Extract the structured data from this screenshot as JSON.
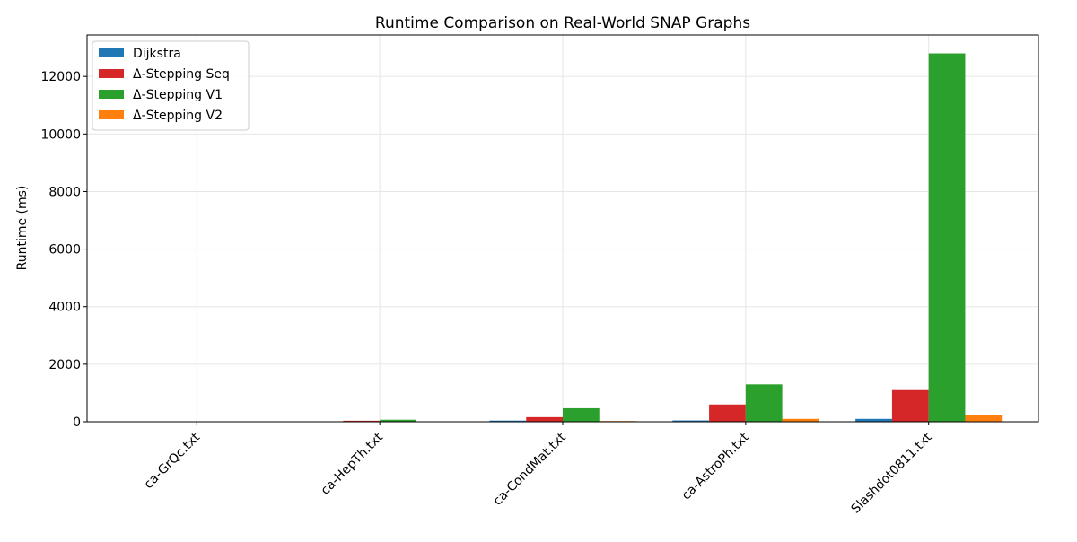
{
  "chart_data": {
    "type": "bar",
    "title": "Runtime Comparison on Real-World SNAP Graphs",
    "xlabel": "",
    "ylabel": "Runtime (ms)",
    "categories": [
      "ca-GrQc.txt",
      "ca-HepTh.txt",
      "ca-CondMat.txt",
      "ca-AstroPh.txt",
      "Slashdot0811.txt"
    ],
    "series": [
      {
        "name": "Dijkstra",
        "color": "#1f77b4",
        "values": [
          5,
          10,
          40,
          45,
          100
        ]
      },
      {
        "name": "Δ-Stepping Seq",
        "color": "#d62728",
        "values": [
          10,
          35,
          160,
          600,
          1100
        ]
      },
      {
        "name": "Δ-Stepping V1",
        "color": "#2ca02c",
        "values": [
          15,
          70,
          470,
          1300,
          12800
        ]
      },
      {
        "name": "Δ-Stepping V2",
        "color": "#ff7f0e",
        "values": [
          5,
          10,
          25,
          100,
          230
        ]
      }
    ],
    "ylim": [
      0,
      13440
    ],
    "yticks": [
      0,
      2000,
      4000,
      6000,
      8000,
      10000,
      12000
    ],
    "grid": true,
    "legend_position": "upper-left"
  }
}
